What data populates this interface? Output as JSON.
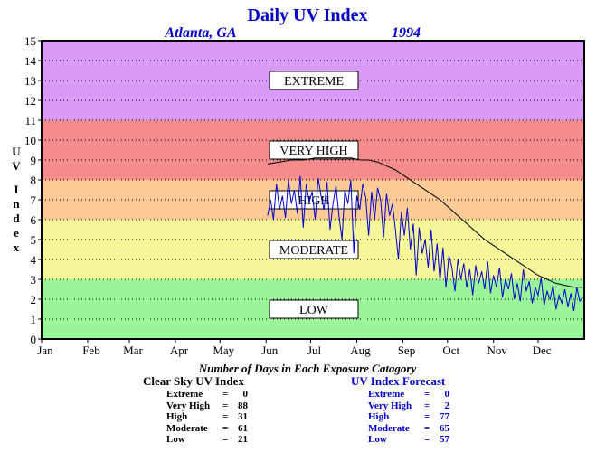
{
  "chart_data": {
    "type": "line",
    "title": "Daily UV Index",
    "subtitle_location": "Atlanta, GA",
    "subtitle_year": "1994",
    "ylabel": "UV Index",
    "ylim": [
      0,
      15
    ],
    "xlim": [
      0,
      365
    ],
    "y_ticks": [
      "0",
      "1",
      "2",
      "3",
      "4",
      "5",
      "6",
      "7",
      "8",
      "9",
      "10",
      "11",
      "12",
      "13",
      "14",
      "15"
    ],
    "month_ticks": [
      "Jan",
      "Feb",
      "Mar",
      "Apr",
      "May",
      "Jun",
      "Jul",
      "Aug",
      "Sep",
      "Oct",
      "Nov",
      "Dec"
    ],
    "bands": [
      {
        "label": "LOW",
        "from": 0,
        "to": 3,
        "color": "#9af59a"
      },
      {
        "label": "MODERATE",
        "from": 3,
        "to": 6,
        "color": "#f5f59a"
      },
      {
        "label": "HIGH",
        "from": 6,
        "to": 8,
        "color": "#fccb96"
      },
      {
        "label": "VERY HIGH",
        "from": 8,
        "to": 11,
        "color": "#f48c8c"
      },
      {
        "label": "EXTREME",
        "from": 11,
        "to": 15,
        "color": "#d99af5"
      }
    ],
    "series": [
      {
        "name": "Clear Sky UV Index",
        "color": "#000000",
        "x": [
          152,
          160,
          168,
          176,
          184,
          192,
          200,
          208,
          214,
          220,
          226,
          232,
          238,
          244,
          250,
          256,
          262,
          268,
          274,
          280,
          286,
          292,
          298,
          304,
          310,
          316,
          322,
          328,
          334,
          340,
          346,
          352,
          358,
          364
        ],
        "values": [
          8.8,
          8.9,
          9.0,
          9.0,
          9.1,
          9.1,
          9.1,
          9.1,
          9.0,
          9.0,
          8.9,
          8.7,
          8.5,
          8.2,
          7.9,
          7.6,
          7.3,
          7.0,
          6.6,
          6.2,
          5.8,
          5.4,
          5.0,
          4.7,
          4.4,
          4.1,
          3.8,
          3.5,
          3.2,
          3.0,
          2.8,
          2.7,
          2.6,
          2.6
        ]
      },
      {
        "name": "UV Index Forecast",
        "color": "#0000cc",
        "x": [
          152,
          154,
          156,
          158,
          160,
          162,
          164,
          166,
          168,
          170,
          172,
          174,
          176,
          178,
          180,
          182,
          184,
          186,
          188,
          190,
          192,
          194,
          196,
          198,
          200,
          202,
          204,
          206,
          208,
          210,
          212,
          214,
          216,
          218,
          220,
          222,
          224,
          226,
          228,
          230,
          232,
          234,
          236,
          238,
          240,
          242,
          244,
          246,
          248,
          250,
          252,
          254,
          256,
          258,
          260,
          262,
          264,
          266,
          268,
          270,
          272,
          274,
          276,
          278,
          280,
          282,
          284,
          286,
          288,
          290,
          292,
          294,
          296,
          298,
          300,
          302,
          304,
          306,
          308,
          310,
          312,
          314,
          316,
          318,
          320,
          322,
          324,
          326,
          328,
          330,
          332,
          334,
          336,
          338,
          340,
          342,
          344,
          346,
          348,
          350,
          352,
          354,
          356,
          358,
          360,
          362,
          364
        ],
        "values": [
          6.2,
          7.0,
          6.0,
          7.8,
          6.5,
          7.2,
          6.1,
          8.0,
          6.8,
          7.5,
          6.3,
          8.2,
          5.6,
          7.8,
          6.9,
          7.4,
          6.0,
          8.1,
          7.2,
          6.5,
          7.9,
          5.5,
          6.8,
          7.7,
          6.2,
          5.0,
          7.5,
          6.8,
          8.0,
          4.3,
          7.2,
          6.5,
          7.8,
          7.1,
          5.2,
          7.4,
          6.0,
          7.6,
          7.0,
          5.1,
          7.3,
          6.2,
          6.8,
          5.5,
          4.0,
          6.4,
          5.2,
          6.6,
          4.5,
          5.8,
          3.2,
          5.6,
          4.3,
          5.0,
          3.6,
          5.5,
          3.4,
          4.8,
          2.9,
          4.6,
          2.6,
          4.2,
          3.6,
          2.4,
          4.0,
          3.0,
          3.8,
          2.6,
          3.5,
          2.2,
          3.7,
          2.8,
          3.4,
          2.5,
          3.9,
          2.3,
          3.2,
          2.6,
          3.6,
          2.1,
          3.0,
          2.5,
          3.3,
          2.0,
          2.8,
          1.9,
          3.5,
          2.4,
          2.9,
          1.8,
          2.6,
          2.2,
          3.1,
          1.7,
          2.4,
          2.0,
          2.7,
          1.5,
          2.2,
          1.8,
          2.5,
          1.6,
          2.3,
          1.4,
          2.6,
          1.9,
          2.1
        ]
      }
    ]
  },
  "summary_title": "Number of Days in Each Exposure Catagory",
  "clear_sky": {
    "title": "Clear Sky UV Index",
    "rows": [
      {
        "name": "Extreme",
        "value": "0"
      },
      {
        "name": "Very High",
        "value": "88"
      },
      {
        "name": "High",
        "value": "31"
      },
      {
        "name": "Moderate",
        "value": "61"
      },
      {
        "name": "Low",
        "value": "21"
      }
    ]
  },
  "forecast": {
    "title": "UV Index Forecast",
    "rows": [
      {
        "name": "Extreme",
        "value": "0"
      },
      {
        "name": "Very High",
        "value": "2"
      },
      {
        "name": "High",
        "value": "77"
      },
      {
        "name": "Moderate",
        "value": "65"
      },
      {
        "name": "Low",
        "value": "57"
      }
    ]
  },
  "colors": {
    "text_blue": "#0000cc",
    "black": "#000000"
  }
}
